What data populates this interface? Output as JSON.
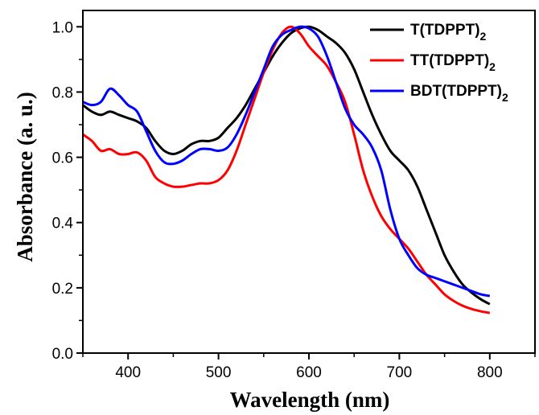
{
  "chart_data": {
    "type": "line",
    "title": "",
    "xlabel": "Wavelength (nm)",
    "ylabel": "Absorbance (a. u.)",
    "xlim": [
      350,
      850
    ],
    "ylim": [
      0.0,
      1.05
    ],
    "xticks": [
      400,
      500,
      600,
      700,
      800
    ],
    "xtick_labels": [
      "400",
      "500",
      "600",
      "700",
      "800"
    ],
    "yticks": [
      0.0,
      0.2,
      0.4,
      0.6,
      0.8,
      1.0
    ],
    "ytick_labels": [
      "0.0",
      "0.2",
      "0.4",
      "0.6",
      "0.8",
      "1.0"
    ],
    "grid": false,
    "legend_position": "top-right",
    "series": [
      {
        "name": "T(TDPPT)",
        "name_subscript": "2",
        "color": "#000000",
        "x": [
          350,
          360,
          370,
          380,
          390,
          400,
          410,
          420,
          430,
          440,
          450,
          460,
          470,
          480,
          490,
          500,
          510,
          520,
          530,
          540,
          550,
          560,
          570,
          580,
          590,
          600,
          610,
          620,
          630,
          640,
          650,
          660,
          670,
          680,
          690,
          700,
          710,
          720,
          730,
          740,
          750,
          760,
          770,
          780,
          790,
          800
        ],
        "y": [
          0.76,
          0.74,
          0.73,
          0.74,
          0.73,
          0.72,
          0.71,
          0.69,
          0.65,
          0.62,
          0.61,
          0.62,
          0.64,
          0.65,
          0.65,
          0.66,
          0.69,
          0.72,
          0.76,
          0.81,
          0.86,
          0.91,
          0.95,
          0.98,
          0.995,
          1.0,
          0.99,
          0.97,
          0.95,
          0.92,
          0.87,
          0.8,
          0.73,
          0.67,
          0.62,
          0.59,
          0.56,
          0.51,
          0.44,
          0.37,
          0.3,
          0.25,
          0.21,
          0.185,
          0.165,
          0.15
        ]
      },
      {
        "name": "TT(TDPPT)",
        "name_subscript": "2",
        "color": "#ff0000",
        "x": [
          350,
          360,
          370,
          380,
          390,
          400,
          410,
          420,
          430,
          440,
          450,
          460,
          470,
          480,
          490,
          500,
          510,
          520,
          530,
          540,
          550,
          560,
          570,
          580,
          590,
          600,
          610,
          620,
          630,
          640,
          650,
          660,
          670,
          680,
          690,
          700,
          710,
          720,
          730,
          740,
          750,
          760,
          770,
          780,
          790,
          800
        ],
        "y": [
          0.67,
          0.65,
          0.62,
          0.625,
          0.61,
          0.61,
          0.615,
          0.59,
          0.54,
          0.52,
          0.51,
          0.51,
          0.515,
          0.52,
          0.52,
          0.53,
          0.56,
          0.62,
          0.7,
          0.78,
          0.86,
          0.93,
          0.98,
          1.0,
          0.98,
          0.94,
          0.91,
          0.88,
          0.83,
          0.77,
          0.67,
          0.56,
          0.48,
          0.42,
          0.38,
          0.35,
          0.32,
          0.28,
          0.24,
          0.21,
          0.18,
          0.16,
          0.145,
          0.135,
          0.128,
          0.123
        ]
      },
      {
        "name": "BDT(TDPPT)",
        "name_subscript": "2",
        "color": "#0000ff",
        "x": [
          350,
          360,
          370,
          380,
          390,
          400,
          410,
          420,
          430,
          440,
          450,
          460,
          470,
          480,
          490,
          500,
          510,
          520,
          530,
          540,
          550,
          560,
          570,
          580,
          590,
          600,
          610,
          620,
          630,
          640,
          650,
          660,
          670,
          680,
          690,
          700,
          710,
          720,
          730,
          740,
          750,
          760,
          770,
          780,
          790,
          800
        ],
        "y": [
          0.77,
          0.76,
          0.77,
          0.81,
          0.79,
          0.76,
          0.74,
          0.68,
          0.62,
          0.585,
          0.58,
          0.59,
          0.61,
          0.625,
          0.625,
          0.62,
          0.63,
          0.67,
          0.73,
          0.8,
          0.87,
          0.94,
          0.975,
          0.99,
          1.0,
          0.995,
          0.97,
          0.91,
          0.83,
          0.75,
          0.7,
          0.67,
          0.63,
          0.56,
          0.44,
          0.35,
          0.3,
          0.26,
          0.24,
          0.23,
          0.22,
          0.21,
          0.2,
          0.19,
          0.18,
          0.175
        ]
      }
    ]
  }
}
